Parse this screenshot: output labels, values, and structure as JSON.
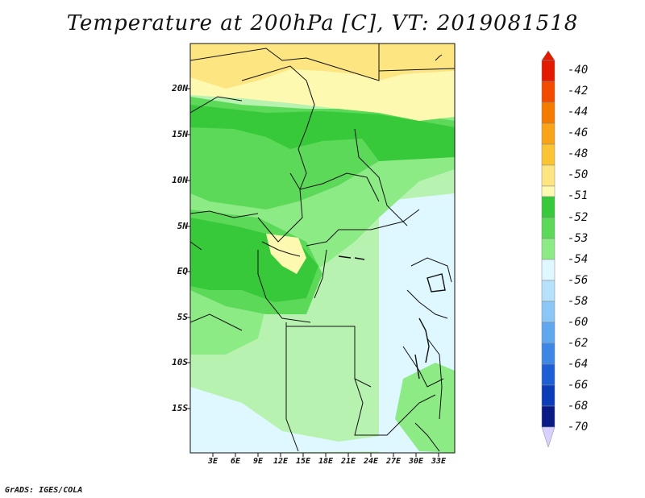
{
  "title": "Temperature at 200hPa [C], VT: 2019081518",
  "credit": "GrADS: IGES/COLA",
  "lat_labels": [
    "20N",
    "15N",
    "10N",
    "5N",
    "EQ",
    "5S",
    "10S",
    "15S"
  ],
  "lon_labels": [
    "3E",
    "6E",
    "9E",
    "12E",
    "15E",
    "18E",
    "21E",
    "24E",
    "27E",
    "30E",
    "33E"
  ],
  "colorbar": {
    "labels": [
      "-40",
      "-42",
      "-44",
      "-46",
      "-48",
      "-50",
      "-51",
      "-52",
      "-53",
      "-54",
      "-56",
      "-58",
      "-60",
      "-62",
      "-64",
      "-66",
      "-68",
      "-70"
    ],
    "colors": [
      "#e41a00",
      "#f24b00",
      "#f57a00",
      "#f8a318",
      "#fbc435",
      "#fde582",
      "#fef9b0",
      "#38c93a",
      "#5dd95a",
      "#8deb86",
      "#d5f9d5",
      "#dff8ff",
      "#b6e1fb",
      "#8bc7f6",
      "#5fa7ef",
      "#3e87e6",
      "#1f5fd6",
      "#0b3db8",
      "#0a1b86",
      "#d8d0ff"
    ]
  },
  "map": {
    "colors": {
      "yellow_high": "#fde582",
      "yellow_low": "#fef9b0",
      "green_dark": "#38c93a",
      "green_mid": "#5dd95a",
      "green_light": "#8deb86",
      "green_pale": "#b8f2b0",
      "cyan_pale": "#dff8ff"
    }
  }
}
